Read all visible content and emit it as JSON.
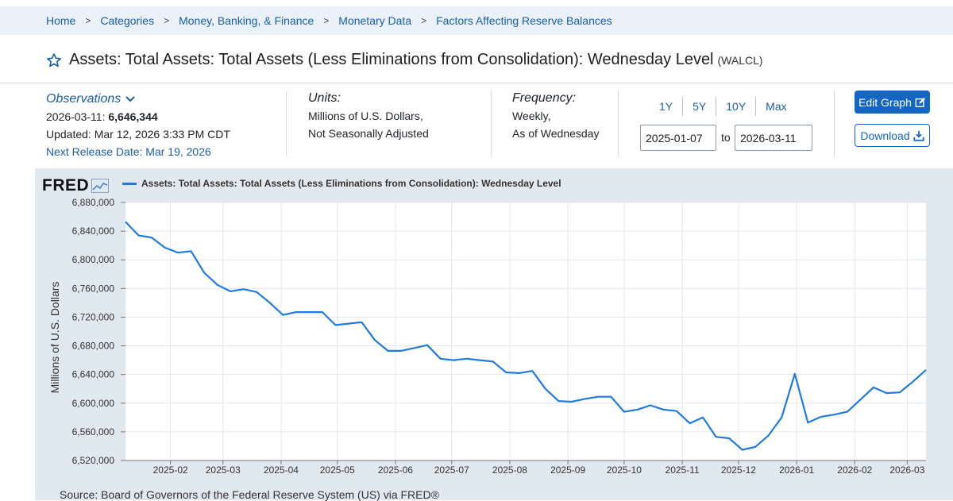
{
  "breadcrumb": {
    "items": [
      "Home",
      "Categories",
      "Money, Banking, & Finance",
      "Monetary Data",
      "Factors Affecting Reserve Balances"
    ],
    "separator": ">"
  },
  "header": {
    "title": "Assets: Total Assets: Total Assets (Less Eliminations from Consolidation): Wednesday Level",
    "series_id": "(WALCL)"
  },
  "observations": {
    "label": "Observations",
    "latest_date": "2026-03-11:",
    "latest_value": "6,646,344",
    "updated": "Updated: Mar 12, 2026 3:33 PM CDT",
    "next_release": "Next Release Date: Mar 19, 2026"
  },
  "units": {
    "label": "Units:",
    "line1": "Millions of U.S. Dollars,",
    "line2": "Not Seasonally Adjusted"
  },
  "frequency": {
    "label": "Frequency:",
    "line1": "Weekly,",
    "line2": "As of Wednesday"
  },
  "range": {
    "buttons": [
      "1Y",
      "5Y",
      "10Y",
      "Max"
    ],
    "start": "2025-01-07",
    "to_label": "to",
    "end": "2026-03-11"
  },
  "actions": {
    "edit_graph": "Edit Graph",
    "download": "Download"
  },
  "chart_panel": {
    "logo_text": "FRED",
    "source": "Source: Board of Governors of the Federal Reserve System (US) via FRED®"
  },
  "colors": {
    "line": "#1f7be0",
    "accent": "#1366c4",
    "panel": "#e1e9f0"
  },
  "chart_data": {
    "type": "line",
    "title": "",
    "legend": "Assets: Total Assets: Total Assets (Less Eliminations from Consolidation): Wednesday Level",
    "xlabel": "",
    "ylabel": "Millions of U.S. Dollars",
    "ylim": [
      6520000,
      6880000
    ],
    "yticks": [
      6520000,
      6560000,
      6600000,
      6640000,
      6680000,
      6720000,
      6760000,
      6800000,
      6840000,
      6880000
    ],
    "ytick_labels": [
      "6,520,000",
      "6,560,000",
      "6,600,000",
      "6,640,000",
      "6,680,000",
      "6,720,000",
      "6,760,000",
      "6,800,000",
      "6,840,000",
      "6,880,000"
    ],
    "x_start": "2025-01-08",
    "x_step_days": 7,
    "x_end": "2026-03-11",
    "xtick_labels": [
      "2025-02",
      "2025-03",
      "2025-04",
      "2025-05",
      "2025-06",
      "2025-07",
      "2025-08",
      "2025-09",
      "2025-10",
      "2025-11",
      "2025-12",
      "2026-01",
      "2026-02",
      "2026-03"
    ],
    "grid": true,
    "series": [
      {
        "name": "WALCL",
        "values": [
          6853000,
          6834000,
          6831000,
          6817000,
          6810000,
          6812000,
          6782000,
          6765000,
          6756000,
          6759000,
          6755000,
          6740000,
          6723000,
          6727000,
          6727000,
          6727000,
          6709000,
          6711000,
          6713000,
          6688000,
          6673000,
          6673000,
          6677000,
          6681000,
          6662000,
          6660000,
          6662000,
          6660000,
          6658000,
          6643000,
          6642000,
          6645000,
          6620000,
          6603000,
          6602000,
          6606000,
          6609000,
          6609000,
          6588000,
          6591000,
          6597000,
          6591000,
          6589000,
          6572000,
          6580000,
          6553000,
          6551000,
          6535000,
          6539000,
          6555000,
          6580000,
          6641000,
          6573000,
          6581000,
          6584000,
          6588000,
          6605000,
          6622000,
          6614000,
          6615000,
          6630000,
          6646344
        ]
      }
    ]
  }
}
